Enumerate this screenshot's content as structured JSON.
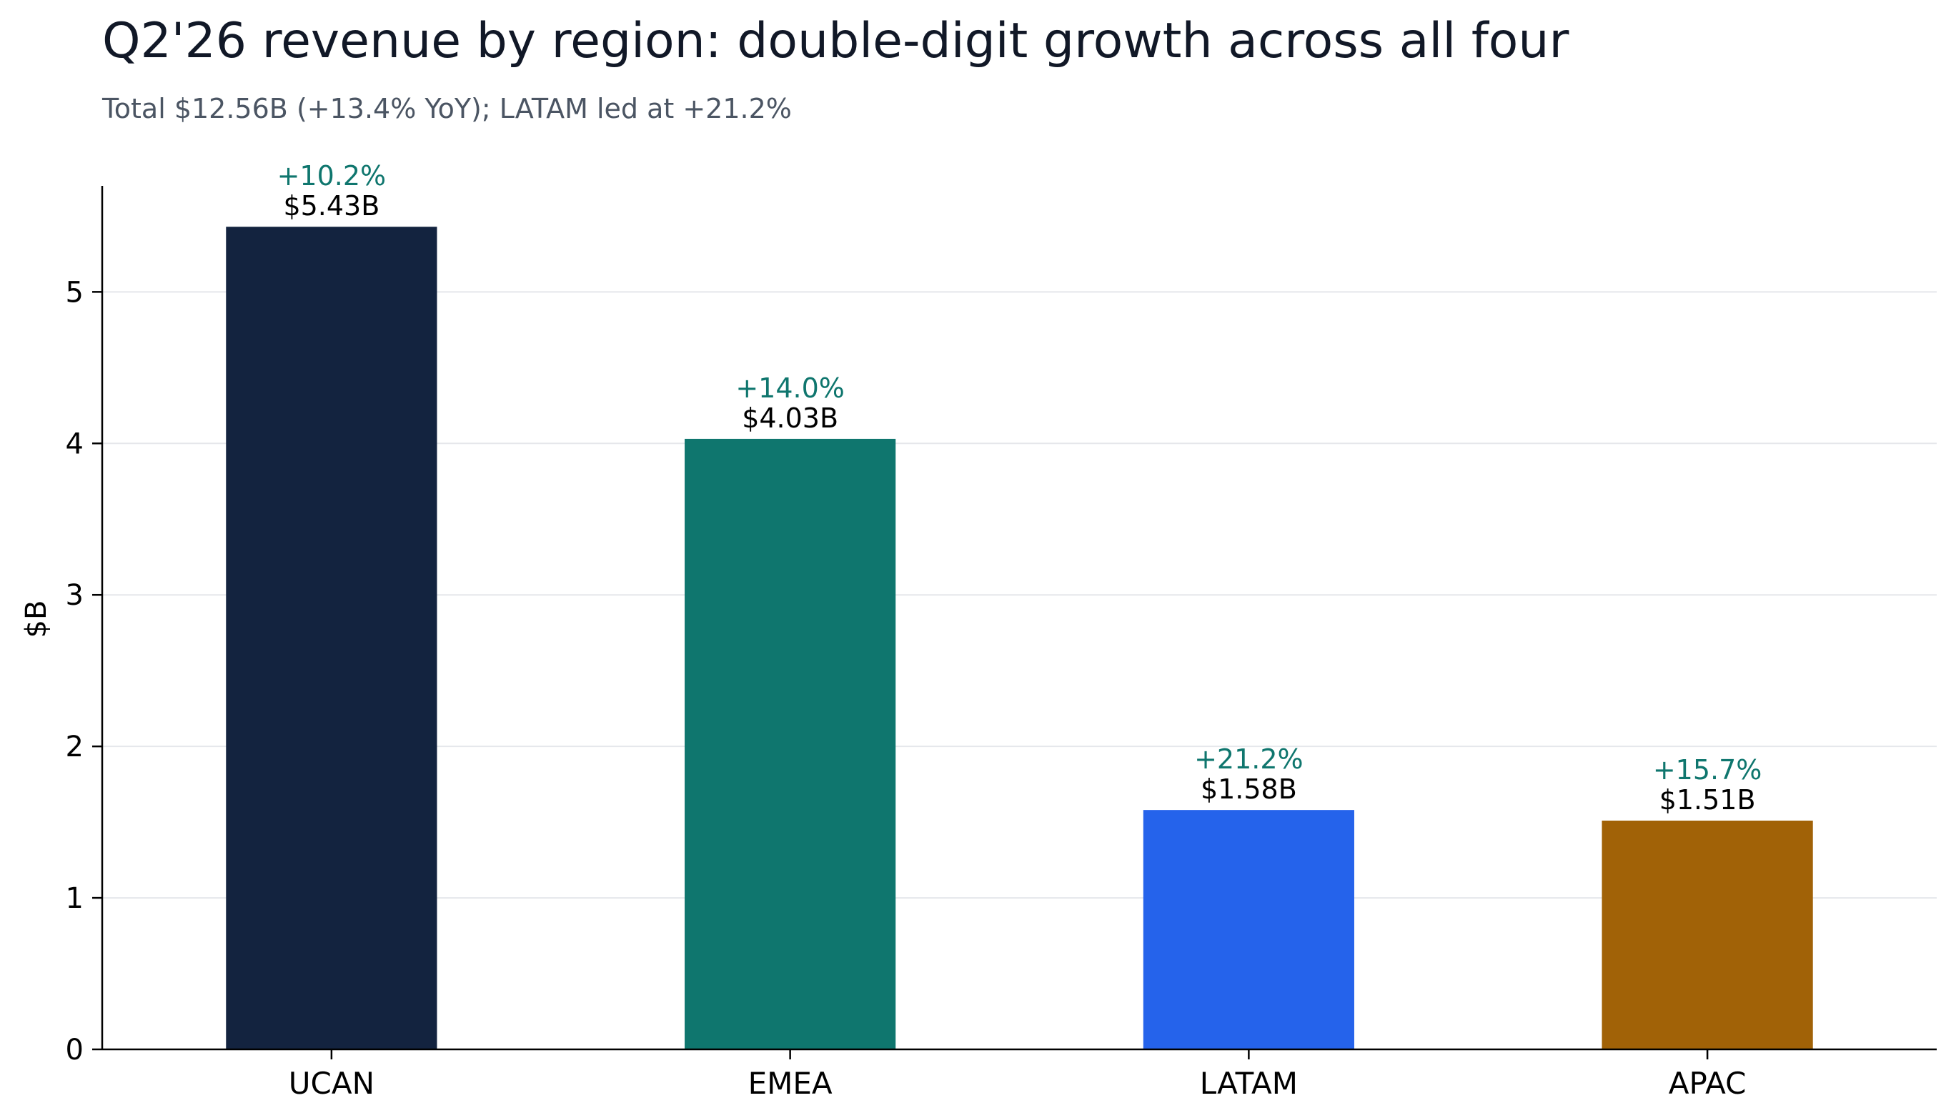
{
  "chart_data": {
    "type": "bar",
    "title": "Q2'26 revenue by region: double-digit growth across all four",
    "subtitle": "Total $12.56B (+13.4% YoY); LATAM led at +21.2%",
    "xlabel": "",
    "ylabel": "$B",
    "ylim": [
      0,
      5.7
    ],
    "yticks": [
      0,
      1,
      2,
      3,
      4,
      5
    ],
    "grid": "horizontal",
    "categories": [
      "UCAN",
      "EMEA",
      "LATAM",
      "APAC"
    ],
    "values": [
      5.43,
      4.03,
      1.58,
      1.51
    ],
    "value_labels": [
      "$5.43B",
      "$4.03B",
      "$1.58B",
      "$1.51B"
    ],
    "growth_labels": [
      "+10.2%",
      "+14.0%",
      "+21.2%",
      "+15.7%"
    ],
    "bar_colors": [
      "#13233f",
      "#0f766e",
      "#2563eb",
      "#a16207"
    ],
    "growth_color": "#0f766e"
  }
}
